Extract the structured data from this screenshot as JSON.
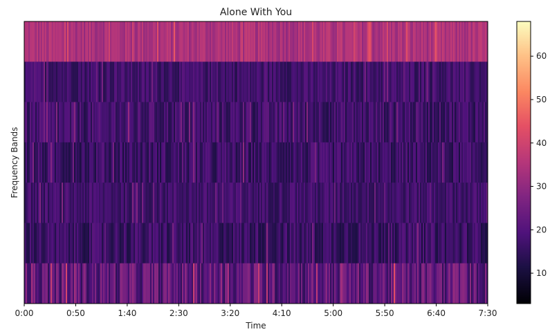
{
  "chart_data": {
    "type": "heatmap",
    "title": "Alone With You",
    "xlabel": "Time",
    "ylabel": "Frequency Bands",
    "x_ticks": [
      "0:00",
      "0:50",
      "1:40",
      "2:30",
      "3:20",
      "4:10",
      "5:00",
      "5:50",
      "6:40",
      "7:30"
    ],
    "xlim_seconds": [
      0,
      450
    ],
    "n_bands": 7,
    "band_mean_values_top_to_bottom": [
      34,
      17,
      17,
      16,
      17,
      16,
      22
    ],
    "band_variation_top_to_bottom": [
      4,
      4,
      5,
      5,
      4,
      5,
      8
    ],
    "colorbar": {
      "min": 3,
      "max": 68,
      "ticks": [
        10,
        20,
        30,
        40,
        50,
        60
      ],
      "colormap": "magma"
    },
    "grid": false
  }
}
